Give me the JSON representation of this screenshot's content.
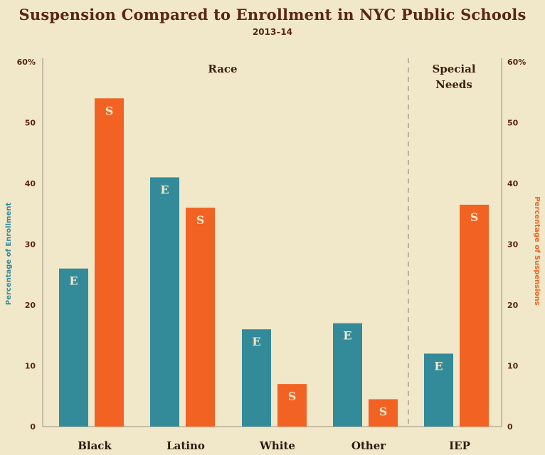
{
  "chart_data": {
    "type": "bar",
    "title": "Suspension Compared to Enrollment in NYC Public Schools",
    "subtitle": "2013–14",
    "ylabel_left": "Percentage of Enrollment",
    "ylabel_right": "Percentage of Suspensions",
    "ylim": [
      0,
      60
    ],
    "yticks_left": [
      "0",
      "10",
      "20",
      "30",
      "40",
      "50",
      "60%"
    ],
    "yticks_right": [
      "0",
      "10",
      "20",
      "30",
      "40",
      "50",
      "60%"
    ],
    "groups": [
      {
        "label": "Race",
        "categories": [
          "Black",
          "Latino",
          "White",
          "Other"
        ]
      },
      {
        "label": "Special Needs",
        "label_lines": [
          "Special",
          "Needs"
        ],
        "categories": [
          "IEP"
        ]
      }
    ],
    "categories": [
      "Black",
      "Latino",
      "White",
      "Other",
      "IEP"
    ],
    "series": [
      {
        "name": "E",
        "color": "#338a99",
        "values": [
          26,
          41,
          16,
          17,
          12
        ]
      },
      {
        "name": "S",
        "color": "#f26223",
        "values": [
          54,
          36,
          7,
          4.5,
          36.5
        ]
      }
    ],
    "colors": {
      "background": "#f1e8c9",
      "text": "#5a2613",
      "axis": "#9a9080"
    }
  }
}
